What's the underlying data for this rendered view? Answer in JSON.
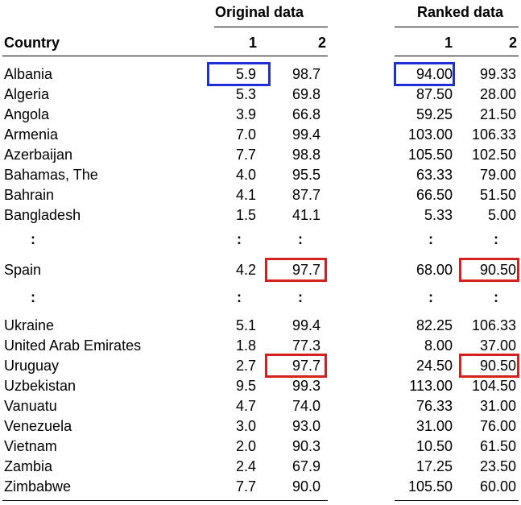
{
  "groups": {
    "original": "Original data",
    "ranked": "Ranked data"
  },
  "columns": {
    "country": "Country",
    "c1": "1",
    "c2": "2"
  },
  "ellipsis": ":",
  "rows": [
    {
      "type": "data",
      "country": "Albania",
      "o1": "5.9",
      "o2": "98.7",
      "r1": "94.00",
      "r2": "99.33"
    },
    {
      "type": "data",
      "country": "Algeria",
      "o1": "5.3",
      "o2": "69.8",
      "r1": "87.50",
      "r2": "28.00"
    },
    {
      "type": "data",
      "country": "Angola",
      "o1": "3.9",
      "o2": "66.8",
      "r1": "59.25",
      "r2": "21.50"
    },
    {
      "type": "data",
      "country": "Armenia",
      "o1": "7.0",
      "o2": "99.4",
      "r1": "103.00",
      "r2": "106.33"
    },
    {
      "type": "data",
      "country": "Azerbaijan",
      "o1": "7.7",
      "o2": "98.8",
      "r1": "105.50",
      "r2": "102.50"
    },
    {
      "type": "data",
      "country": "Bahamas, The",
      "o1": "4.0",
      "o2": "95.5",
      "r1": "63.33",
      "r2": "79.00"
    },
    {
      "type": "data",
      "country": "Bahrain",
      "o1": "4.1",
      "o2": "87.7",
      "r1": "66.50",
      "r2": "51.50"
    },
    {
      "type": "data",
      "country": "Bangladesh",
      "o1": "1.5",
      "o2": "41.1",
      "r1": "5.33",
      "r2": "5.00"
    },
    {
      "type": "ellipsis"
    },
    {
      "type": "data",
      "country": "Spain",
      "o1": "4.2",
      "o2": "97.7",
      "r1": "68.00",
      "r2": "90.50"
    },
    {
      "type": "ellipsis"
    },
    {
      "type": "data",
      "country": "Ukraine",
      "o1": "5.1",
      "o2": "99.4",
      "r1": "82.25",
      "r2": "106.33"
    },
    {
      "type": "data",
      "country": "United Arab Emirates",
      "o1": "1.8",
      "o2": "77.3",
      "r1": "8.00",
      "r2": "37.00"
    },
    {
      "type": "data",
      "country": "Uruguay",
      "o1": "2.7",
      "o2": "97.7",
      "r1": "24.50",
      "r2": "90.50"
    },
    {
      "type": "data",
      "country": "Uzbekistan",
      "o1": "9.5",
      "o2": "99.3",
      "r1": "113.00",
      "r2": "104.50"
    },
    {
      "type": "data",
      "country": "Vanuatu",
      "o1": "4.7",
      "o2": "74.0",
      "r1": "76.33",
      "r2": "31.00"
    },
    {
      "type": "data",
      "country": "Venezuela",
      "o1": "3.0",
      "o2": "93.0",
      "r1": "31.00",
      "r2": "76.00"
    },
    {
      "type": "data",
      "country": "Vietnam",
      "o1": "2.0",
      "o2": "90.3",
      "r1": "10.50",
      "r2": "61.50"
    },
    {
      "type": "data",
      "country": "Zambia",
      "o1": "2.4",
      "o2": "67.9",
      "r1": "17.25",
      "r2": "23.50"
    },
    {
      "type": "data",
      "country": "Zimbabwe",
      "o1": "7.7",
      "o2": "90.0",
      "r1": "105.50",
      "r2": "60.00"
    }
  ],
  "highlights": [
    {
      "row": 0,
      "col": "o1",
      "color": "#1f2fd6"
    },
    {
      "row": 0,
      "col": "r1",
      "color": "#1f2fd6"
    },
    {
      "row": 9,
      "col": "o2",
      "color": "#d42020"
    },
    {
      "row": 9,
      "col": "r2",
      "color": "#d42020"
    },
    {
      "row": 13,
      "col": "o2",
      "color": "#d42020"
    },
    {
      "row": 13,
      "col": "r2",
      "color": "#d42020"
    }
  ]
}
